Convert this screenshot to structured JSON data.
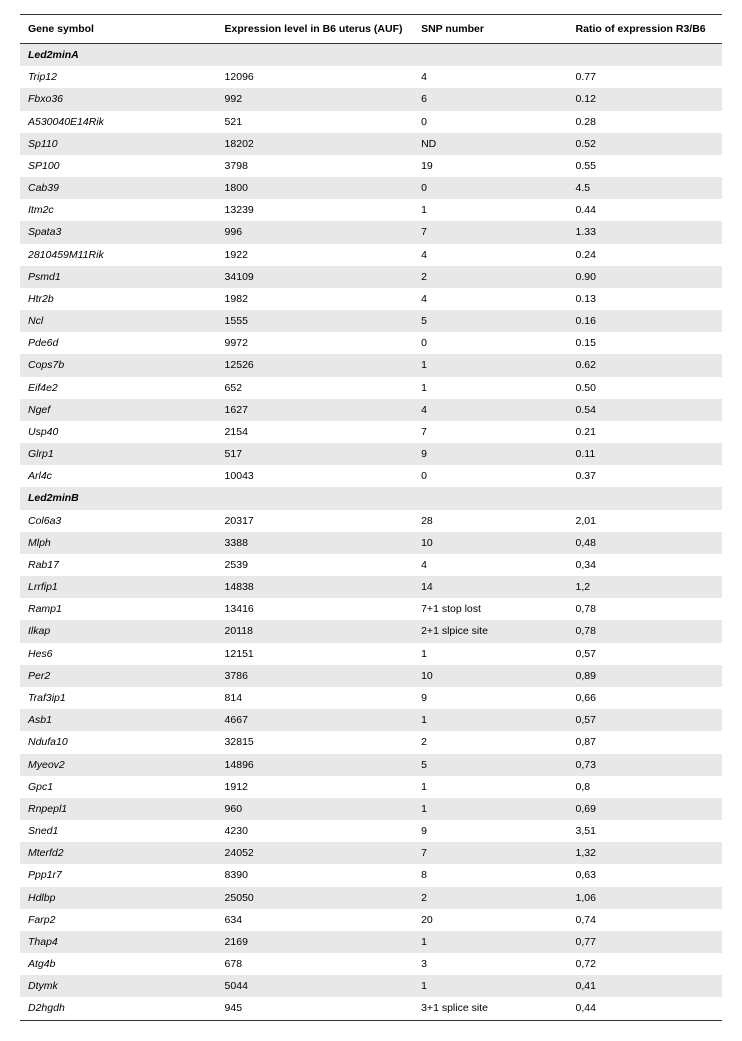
{
  "headers": {
    "gene": "Gene symbol",
    "expr": "Expression level in B6 uterus (AUF)",
    "snp": "SNP number",
    "ratio": "Ratio of expression R3/B6"
  },
  "sections": [
    {
      "title": "Led2minA",
      "rows": [
        {
          "gene": "Trip12",
          "expr": "12096",
          "snp": "4",
          "ratio": "0.77"
        },
        {
          "gene": "Fbxo36",
          "expr": "992",
          "snp": "6",
          "ratio": "0.12"
        },
        {
          "gene": "A530040E14Rik",
          "expr": "521",
          "snp": "0",
          "ratio": "0.28"
        },
        {
          "gene": "Sp110",
          "expr": "18202",
          "snp": "ND",
          "ratio": "0.52"
        },
        {
          "gene": "SP100",
          "expr": "3798",
          "snp": "19",
          "ratio": "0.55"
        },
        {
          "gene": "Cab39",
          "expr": "1800",
          "snp": "0",
          "ratio": "4.5"
        },
        {
          "gene": "Itm2c",
          "expr": "13239",
          "snp": "1",
          "ratio": "0.44"
        },
        {
          "gene": "Spata3",
          "expr": "996",
          "snp": "7",
          "ratio": "1.33"
        },
        {
          "gene": "2810459M11Rik",
          "expr": "1922",
          "snp": "4",
          "ratio": "0.24"
        },
        {
          "gene": "Psmd1",
          "expr": "34109",
          "snp": "2",
          "ratio": "0.90"
        },
        {
          "gene": "Htr2b",
          "expr": "1982",
          "snp": "4",
          "ratio": "0.13"
        },
        {
          "gene": "Ncl",
          "expr": "1555",
          "snp": "5",
          "ratio": "0.16"
        },
        {
          "gene": "Pde6d",
          "expr": "9972",
          "snp": "0",
          "ratio": "0.15"
        },
        {
          "gene": "Cops7b",
          "expr": "12526",
          "snp": "1",
          "ratio": "0.62"
        },
        {
          "gene": "Eif4e2",
          "expr": "652",
          "snp": "1",
          "ratio": "0.50"
        },
        {
          "gene": "Ngef",
          "expr": "1627",
          "snp": "4",
          "ratio": "0.54"
        },
        {
          "gene": "Usp40",
          "expr": "2154",
          "snp": "7",
          "ratio": "0.21"
        },
        {
          "gene": "Glrp1",
          "expr": "517",
          "snp": "9",
          "ratio": "0.11"
        },
        {
          "gene": "Arl4c",
          "expr": "10043",
          "snp": "0",
          "ratio": "0.37"
        }
      ]
    },
    {
      "title": "Led2minB",
      "rows": [
        {
          "gene": "Col6a3",
          "expr": "20317",
          "snp": "28",
          "ratio": "2,01"
        },
        {
          "gene": "Mlph",
          "expr": "3388",
          "snp": "10",
          "ratio": "0,48"
        },
        {
          "gene": "Rab17",
          "expr": "2539",
          "snp": "4",
          "ratio": "0,34"
        },
        {
          "gene": "Lrrfip1",
          "expr": "14838",
          "snp": "14",
          "ratio": "1,2"
        },
        {
          "gene": "Ramp1",
          "expr": "13416",
          "snp": "7+1 stop lost",
          "ratio": "0,78"
        },
        {
          "gene": "Ilkap",
          "expr": "20118",
          "snp": "2+1 slpice site",
          "ratio": "0,78"
        },
        {
          "gene": "Hes6",
          "expr": "12151",
          "snp": "1",
          "ratio": "0,57"
        },
        {
          "gene": "Per2",
          "expr": "3786",
          "snp": "10",
          "ratio": "0,89"
        },
        {
          "gene": "Traf3ip1",
          "expr": "814",
          "snp": "9",
          "ratio": "0,66"
        },
        {
          "gene": "Asb1",
          "expr": "4667",
          "snp": "1",
          "ratio": "0,57"
        },
        {
          "gene": "Ndufa10",
          "expr": "32815",
          "snp": "2",
          "ratio": "0,87"
        },
        {
          "gene": "Myeov2",
          "expr": "14896",
          "snp": "5",
          "ratio": "0,73"
        },
        {
          "gene": "Gpc1",
          "expr": "1912",
          "snp": "1",
          "ratio": "0,8"
        },
        {
          "gene": "Rnpepl1",
          "expr": "960",
          "snp": "1",
          "ratio": "0,69"
        },
        {
          "gene": "Sned1",
          "expr": "4230",
          "snp": "9",
          "ratio": "3,51"
        },
        {
          "gene": "Mterfd2",
          "expr": "24052",
          "snp": "7",
          "ratio": "1,32"
        },
        {
          "gene": "Ppp1r7",
          "expr": "8390",
          "snp": "8",
          "ratio": "0,63"
        },
        {
          "gene": "Hdlbp",
          "expr": "25050",
          "snp": "2",
          "ratio": "1,06"
        },
        {
          "gene": "Farp2",
          "expr": "634",
          "snp": "20",
          "ratio": "0,74"
        },
        {
          "gene": "Thap4",
          "expr": "2169",
          "snp": "1",
          "ratio": "0,77"
        },
        {
          "gene": "Atg4b",
          "expr": "678",
          "snp": "3",
          "ratio": "0,72"
        },
        {
          "gene": "Dtymk",
          "expr": "5044",
          "snp": "1",
          "ratio": "0,41"
        },
        {
          "gene": "D2hgdh",
          "expr": "945",
          "snp": "3+1 splice site",
          "ratio": "0,44"
        }
      ]
    }
  ],
  "style": {
    "header_border_color": "#333333",
    "row_alt_bg": "#e8e8e8",
    "row_bg": "#ffffff",
    "font_size": 10.5,
    "font_family": "Arial, Helvetica, sans-serif",
    "text_color": "#000000",
    "col_widths_pct": [
      28,
      28,
      22,
      22
    ]
  }
}
